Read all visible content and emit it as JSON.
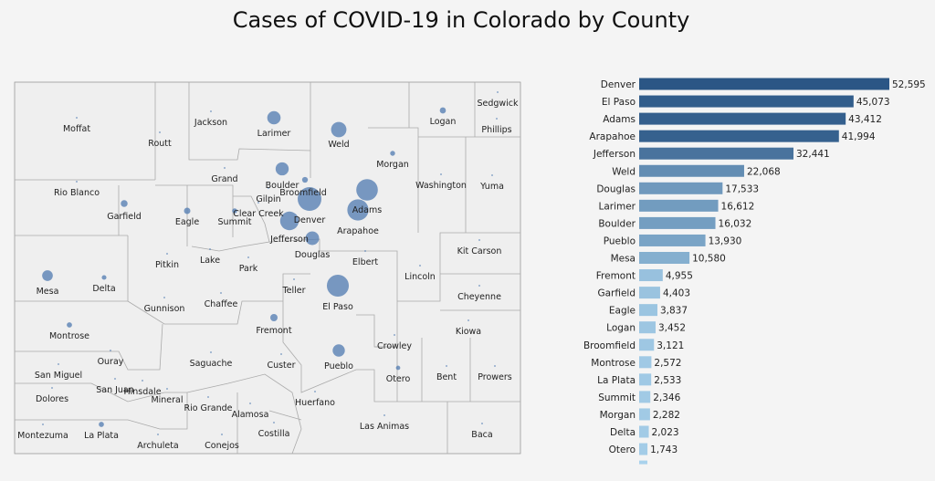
{
  "chart_data": [
    {
      "type": "scatter",
      "subtype": "proportional-symbol-map",
      "title": "Cases of COVID-19 in Colorado by County",
      "counties": [
        "Moffat",
        "Routt",
        "Jackson",
        "Larimer",
        "Weld",
        "Logan",
        "Sedgwick",
        "Phillips",
        "Morgan",
        "Rio Blanco",
        "Grand",
        "Boulder",
        "Broomfield",
        "Gilpin",
        "Clear Creek",
        "Washington",
        "Yuma",
        "Garfield",
        "Eagle",
        "Summit",
        "Denver",
        "Adams",
        "Arapahoe",
        "Jefferson",
        "Douglas",
        "Elbert",
        "Kit Carson",
        "Pitkin",
        "Lake",
        "Park",
        "Lincoln",
        "Mesa",
        "Delta",
        "Teller",
        "El Paso",
        "Cheyenne",
        "Gunnison",
        "Chaffee",
        "Fremont",
        "Montrose",
        "Kiowa",
        "Ouray",
        "Saguache",
        "Custer",
        "Pueblo",
        "Crowley",
        "San Miguel",
        "San Juan",
        "Hinsdale",
        "Mineral",
        "Otero",
        "Bent",
        "Prowers",
        "Dolores",
        "Rio Grande",
        "Alamosa",
        "Huerfano",
        "Las Animas",
        "Montezuma",
        "La Plata",
        "Archuleta",
        "Conejos",
        "Costilla",
        "Baca"
      ],
      "bubble_color": "#4f79b0"
    },
    {
      "type": "bar",
      "orientation": "horizontal",
      "categories": [
        "Denver",
        "El Paso",
        "Adams",
        "Arapahoe",
        "Jefferson",
        "Weld",
        "Douglas",
        "Larimer",
        "Boulder",
        "Pueblo",
        "Mesa",
        "Fremont",
        "Garfield",
        "Eagle",
        "Logan",
        "Broomfield",
        "Montrose",
        "La Plata",
        "Summit",
        "Morgan",
        "Delta",
        "Otero"
      ],
      "values": [
        52595,
        45073,
        43412,
        41994,
        32441,
        22068,
        17533,
        16612,
        16032,
        13930,
        10580,
        4955,
        4403,
        3837,
        3452,
        3121,
        2572,
        2533,
        2346,
        2282,
        2023,
        1743
      ],
      "value_labels": [
        "52,595",
        "45,073",
        "43,412",
        "41,994",
        "32,441",
        "22,068",
        "17,533",
        "16,612",
        "16,032",
        "13,930",
        "10,580",
        "4,955",
        "4,403",
        "3,837",
        "3,452",
        "3,121",
        "2,572",
        "2,533",
        "2,346",
        "2,282",
        "2,023",
        "1,743"
      ],
      "color_dark": "#2b5685",
      "color_light": "#a9d2ec"
    }
  ]
}
